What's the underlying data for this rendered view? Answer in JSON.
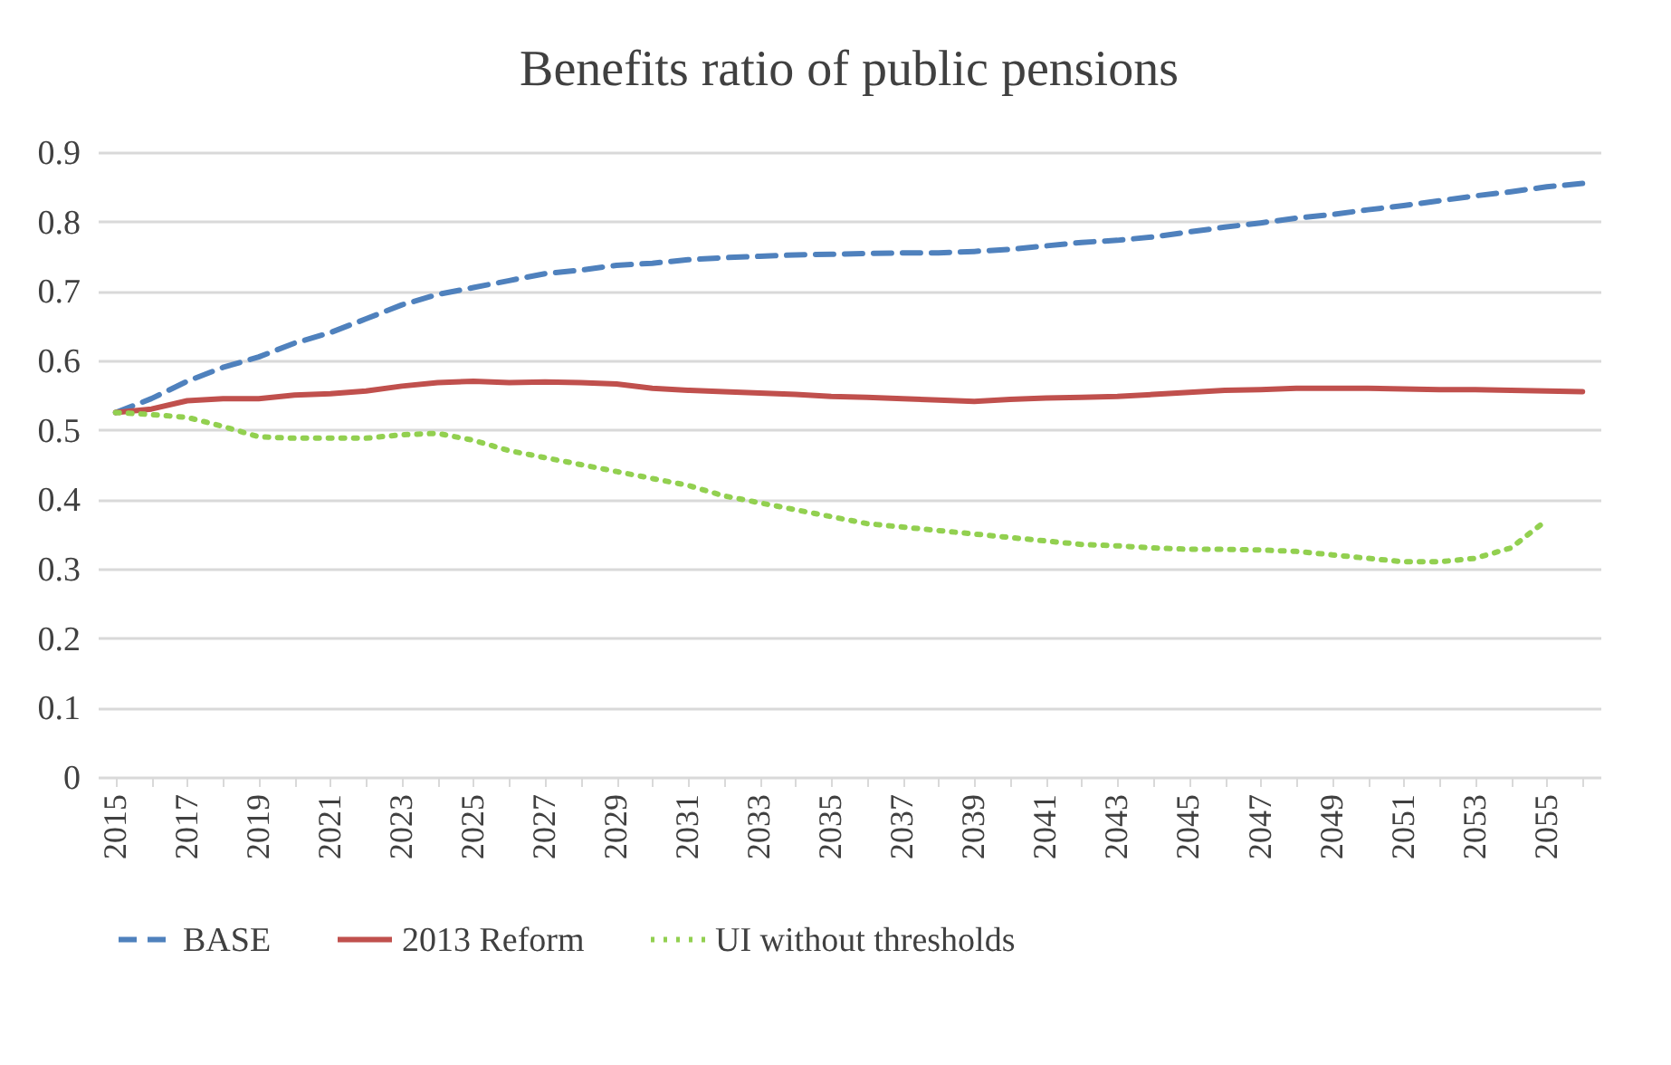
{
  "chart_data": {
    "type": "line",
    "title": "Benefits ratio of public pensions",
    "categories": [
      "2015",
      null,
      "2017",
      null,
      "2019",
      null,
      "2021",
      null,
      "2023",
      null,
      "2025",
      null,
      "2027",
      null,
      "2029",
      null,
      "2031",
      null,
      "2033",
      null,
      "2035",
      null,
      "2037",
      null,
      "2039",
      null,
      "2041",
      null,
      "2043",
      null,
      "2045",
      null,
      "2047",
      null,
      "2049",
      null,
      "2051",
      null,
      "2053",
      null,
      "2055",
      null
    ],
    "series": [
      {
        "name": "BASE",
        "color": "#4f81bd",
        "line_style": "dashed",
        "values": [
          0.525,
          0.545,
          0.57,
          0.59,
          0.605,
          0.625,
          0.64,
          0.66,
          0.68,
          0.695,
          0.705,
          0.715,
          0.725,
          0.73,
          0.737,
          0.74,
          0.745,
          0.748,
          0.75,
          0.752,
          0.753,
          0.754,
          0.755,
          0.755,
          0.757,
          0.76,
          0.765,
          0.77,
          0.773,
          0.778,
          0.785,
          0.792,
          0.798,
          0.805,
          0.81,
          0.817,
          0.823,
          0.83,
          0.837,
          0.843,
          0.85,
          0.855
        ]
      },
      {
        "name": "2013 Reform",
        "color": "#c0504d",
        "line_style": "solid",
        "values": [
          0.525,
          0.53,
          0.542,
          0.545,
          0.545,
          0.55,
          0.552,
          0.556,
          0.563,
          0.568,
          0.57,
          0.568,
          0.569,
          0.568,
          0.566,
          0.56,
          0.557,
          0.555,
          0.553,
          0.551,
          0.548,
          0.547,
          0.545,
          0.543,
          0.541,
          0.544,
          0.546,
          0.547,
          0.548,
          0.551,
          0.554,
          0.557,
          0.558,
          0.56,
          0.56,
          0.56,
          0.559,
          0.558,
          0.558,
          0.557,
          0.556,
          0.555
        ]
      },
      {
        "name": "UI without thresholds",
        "color": "#92d050",
        "line_style": "dotted",
        "values": [
          0.525,
          0.522,
          0.518,
          0.505,
          0.49,
          0.488,
          0.488,
          0.488,
          0.493,
          0.495,
          0.485,
          0.47,
          0.46,
          0.45,
          0.44,
          0.43,
          0.42,
          0.405,
          0.395,
          0.385,
          0.375,
          0.365,
          0.36,
          0.355,
          0.35,
          0.345,
          0.34,
          0.335,
          0.333,
          0.33,
          0.328,
          0.328,
          0.327,
          0.325,
          0.32,
          0.315,
          0.31,
          0.31,
          0.315,
          0.33,
          0.37,
          null
        ]
      }
    ],
    "ylim": [
      0,
      0.9
    ],
    "yticks": [
      0,
      0.1,
      0.2,
      0.3,
      0.4,
      0.5,
      0.6,
      0.7,
      0.8,
      0.9
    ],
    "grid": "y",
    "legend": "bottom"
  }
}
